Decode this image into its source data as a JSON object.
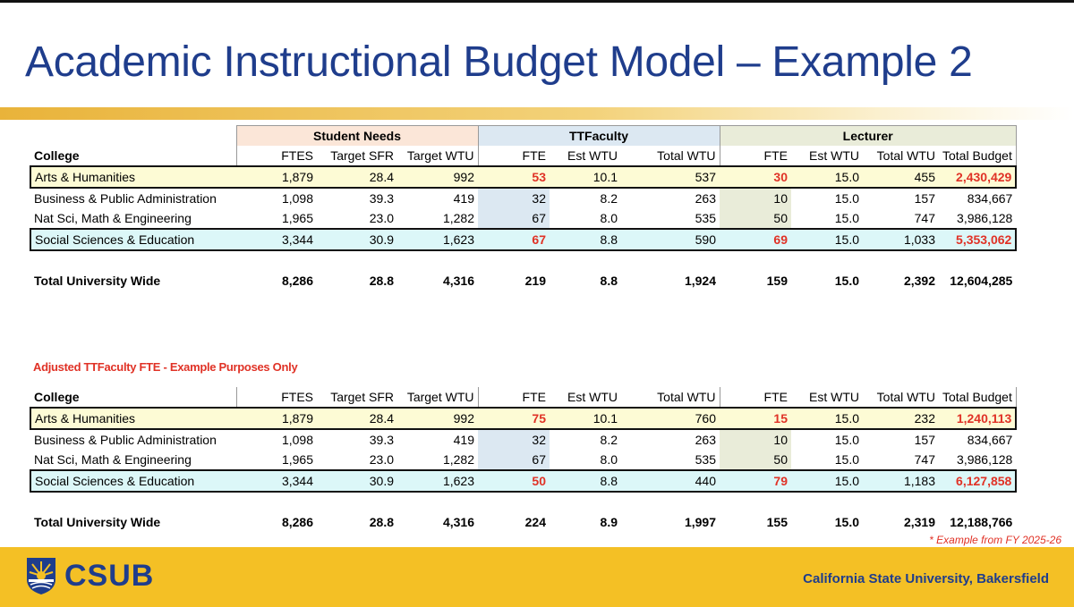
{
  "title": "Academic Instructional Budget Model – Example 2",
  "groups": {
    "student_needs": "Student Needs",
    "tt_faculty": "TTFaculty",
    "lecturer": "Lecturer"
  },
  "columns": [
    "College",
    "FTES",
    "Target SFR",
    "Target WTU",
    "FTE",
    "Est WTU",
    "Total WTU",
    "FTE",
    "Est WTU",
    "Total WTU",
    "Total Budget"
  ],
  "table1": {
    "rows": [
      [
        "Arts & Humanities",
        "1,879",
        "28.4",
        "992",
        "53",
        "10.1",
        "537",
        "30",
        "15.0",
        "455",
        "2,430,429"
      ],
      [
        "Business & Public Administration",
        "1,098",
        "39.3",
        "419",
        "32",
        "8.2",
        "263",
        "10",
        "15.0",
        "157",
        "834,667"
      ],
      [
        "Nat Sci, Math & Engineering",
        "1,965",
        "23.0",
        "1,282",
        "67",
        "8.0",
        "535",
        "50",
        "15.0",
        "747",
        "3,986,128"
      ],
      [
        "Social Sciences & Education",
        "3,344",
        "30.9",
        "1,623",
        "67",
        "8.8",
        "590",
        "69",
        "15.0",
        "1,033",
        "5,353,062"
      ]
    ],
    "total": [
      "Total University Wide",
      "8,286",
      "28.8",
      "4,316",
      "219",
      "8.8",
      "1,924",
      "159",
      "15.0",
      "2,392",
      "12,604,285"
    ]
  },
  "adjusted_note": "Adjusted TTFaculty FTE - Example Purposes Only",
  "table2": {
    "rows": [
      [
        "Arts & Humanities",
        "1,879",
        "28.4",
        "992",
        "75",
        "10.1",
        "760",
        "15",
        "15.0",
        "232",
        "1,240,113"
      ],
      [
        "Business & Public Administration",
        "1,098",
        "39.3",
        "419",
        "32",
        "8.2",
        "263",
        "10",
        "15.0",
        "157",
        "834,667"
      ],
      [
        "Nat Sci, Math & Engineering",
        "1,965",
        "23.0",
        "1,282",
        "67",
        "8.0",
        "535",
        "50",
        "15.0",
        "747",
        "3,986,128"
      ],
      [
        "Social Sciences & Education",
        "3,344",
        "30.9",
        "1,623",
        "50",
        "8.8",
        "440",
        "79",
        "15.0",
        "1,183",
        "6,127,858"
      ]
    ],
    "total": [
      "Total University Wide",
      "8,286",
      "28.8",
      "4,316",
      "224",
      "8.9",
      "1,997",
      "155",
      "15.0",
      "2,319",
      "12,188,766"
    ]
  },
  "footnote": "* Example from FY 2025-26",
  "footer": {
    "logo_text": "CSUB",
    "institution": "California State University, Bakersfield"
  },
  "colors": {
    "title": "#1f3d8c",
    "gold": "#f4c025",
    "highlight_red": "#e03226",
    "arts_row": "#fdfbd5",
    "soc_row": "#dcf7f8"
  }
}
